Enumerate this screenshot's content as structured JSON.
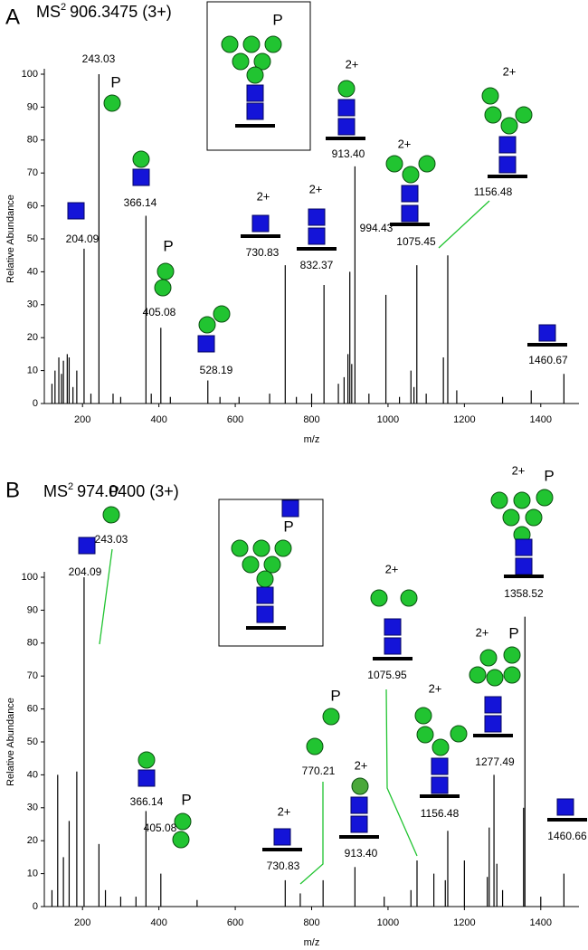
{
  "chart_data": [
    {
      "type": "spectrum",
      "panel": "A",
      "title": "MS",
      "title_sup": "2",
      "title_rest": "906.3475 (3+)",
      "x_label": "m/z",
      "y_label": "Relative Abundance",
      "inset_label": "P",
      "color": "#000000",
      "xlim": [
        100,
        1500
      ],
      "xticks": [
        200,
        400,
        600,
        800,
        1000,
        1200,
        1400
      ],
      "ylim": [
        0,
        100
      ],
      "yticks": [
        0,
        10,
        20,
        30,
        40,
        50,
        60,
        70,
        80,
        90,
        100
      ],
      "x": [
        120,
        128,
        138,
        145,
        150,
        160,
        165,
        175,
        185,
        204.09,
        222,
        243.03,
        280,
        300,
        366.14,
        380,
        405.08,
        430,
        528.19,
        560,
        610,
        690,
        730.83,
        760,
        800,
        832.37,
        870,
        885,
        895,
        900,
        905,
        913.4,
        950,
        994.43,
        1030,
        1060,
        1068,
        1075.45,
        1100,
        1145,
        1156.48,
        1180,
        1300,
        1375,
        1460.67
      ],
      "values": [
        6,
        10,
        14,
        9,
        13,
        15,
        14,
        5,
        10,
        47,
        3,
        100,
        3,
        2,
        57,
        3,
        23,
        2,
        7,
        2,
        2,
        3,
        42,
        2,
        3,
        36,
        6,
        8,
        15,
        40,
        12,
        72,
        3,
        33,
        2,
        10,
        5,
        42,
        3,
        14,
        45,
        4,
        2,
        4,
        9
      ],
      "peak_labels": [
        null,
        null,
        null,
        null,
        null,
        null,
        null,
        null,
        null,
        "204.09",
        null,
        "243.03",
        null,
        null,
        "366.14",
        null,
        "405.08",
        null,
        "528.19",
        null,
        null,
        null,
        "730.83",
        null,
        null,
        "832.37",
        null,
        null,
        null,
        null,
        null,
        "913.40",
        null,
        "994.43",
        null,
        null,
        null,
        "1075.45",
        null,
        null,
        "1156.48",
        null,
        null,
        null,
        "1460.67"
      ],
      "charges": [
        null,
        null,
        null,
        null,
        null,
        null,
        null,
        null,
        null,
        null,
        null,
        null,
        null,
        null,
        null,
        null,
        null,
        null,
        null,
        null,
        null,
        null,
        "2+",
        null,
        null,
        "2+",
        null,
        null,
        null,
        null,
        null,
        "2+",
        null,
        null,
        null,
        null,
        null,
        "2+",
        null,
        null,
        "2+",
        null,
        null,
        null,
        null
      ],
      "phospho": [
        null,
        null,
        null,
        null,
        null,
        null,
        null,
        null,
        null,
        null,
        null,
        "P",
        null,
        null,
        null,
        null,
        "P",
        null,
        null,
        null,
        null,
        null,
        null,
        null,
        null,
        null,
        null,
        null,
        null,
        null,
        null,
        null,
        null,
        null,
        null,
        null,
        null,
        null,
        null,
        null,
        null,
        null,
        null,
        null,
        null
      ]
    },
    {
      "type": "spectrum",
      "panel": "B",
      "title": "MS",
      "title_sup": "2",
      "title_rest": "974.0400 (3+)",
      "x_label": "m/z",
      "y_label": "Relative Abundance",
      "inset_label": "P",
      "color": "#000000",
      "xlim": [
        100,
        1500
      ],
      "xticks": [
        200,
        400,
        600,
        800,
        1000,
        1200,
        1400
      ],
      "ylim": [
        0,
        100
      ],
      "yticks": [
        0,
        10,
        20,
        30,
        40,
        50,
        60,
        70,
        80,
        90,
        100
      ],
      "x": [
        120,
        135,
        150,
        165,
        185,
        204.09,
        243.03,
        260,
        300,
        340,
        366.14,
        405.08,
        500,
        730.83,
        770.21,
        830,
        913.4,
        990,
        1060,
        1075.95,
        1120,
        1150,
        1156.48,
        1200,
        1260,
        1265,
        1277.49,
        1285,
        1300,
        1355,
        1358.52,
        1400,
        1460.66
      ],
      "values": [
        5,
        40,
        15,
        26,
        41,
        100,
        19,
        5,
        3,
        3,
        29,
        10,
        2,
        8,
        4,
        8,
        12,
        3,
        5,
        14,
        10,
        8,
        23,
        14,
        9,
        24,
        40,
        13,
        5,
        30,
        88,
        3,
        10
      ],
      "peak_labels": [
        null,
        null,
        null,
        null,
        null,
        "204.09",
        "243.03",
        null,
        null,
        null,
        "366.14",
        "405.08",
        null,
        "730.83",
        "770.21",
        null,
        "913.40",
        null,
        null,
        "1075.95",
        null,
        null,
        "1156.48",
        null,
        null,
        null,
        "1277.49",
        null,
        null,
        null,
        "1358.52",
        null,
        "1460.66"
      ],
      "charges": [
        null,
        null,
        null,
        null,
        null,
        null,
        null,
        null,
        null,
        null,
        null,
        null,
        null,
        "2+",
        null,
        null,
        "2+",
        null,
        null,
        "2+",
        null,
        null,
        "2+",
        null,
        null,
        null,
        "2+",
        null,
        null,
        null,
        "2+",
        null,
        null
      ],
      "phospho": [
        null,
        null,
        null,
        null,
        null,
        null,
        "P",
        null,
        null,
        null,
        null,
        "P",
        null,
        null,
        "P",
        null,
        null,
        null,
        null,
        null,
        null,
        null,
        null,
        null,
        null,
        null,
        "P",
        null,
        null,
        null,
        "P",
        null,
        null
      ]
    }
  ]
}
